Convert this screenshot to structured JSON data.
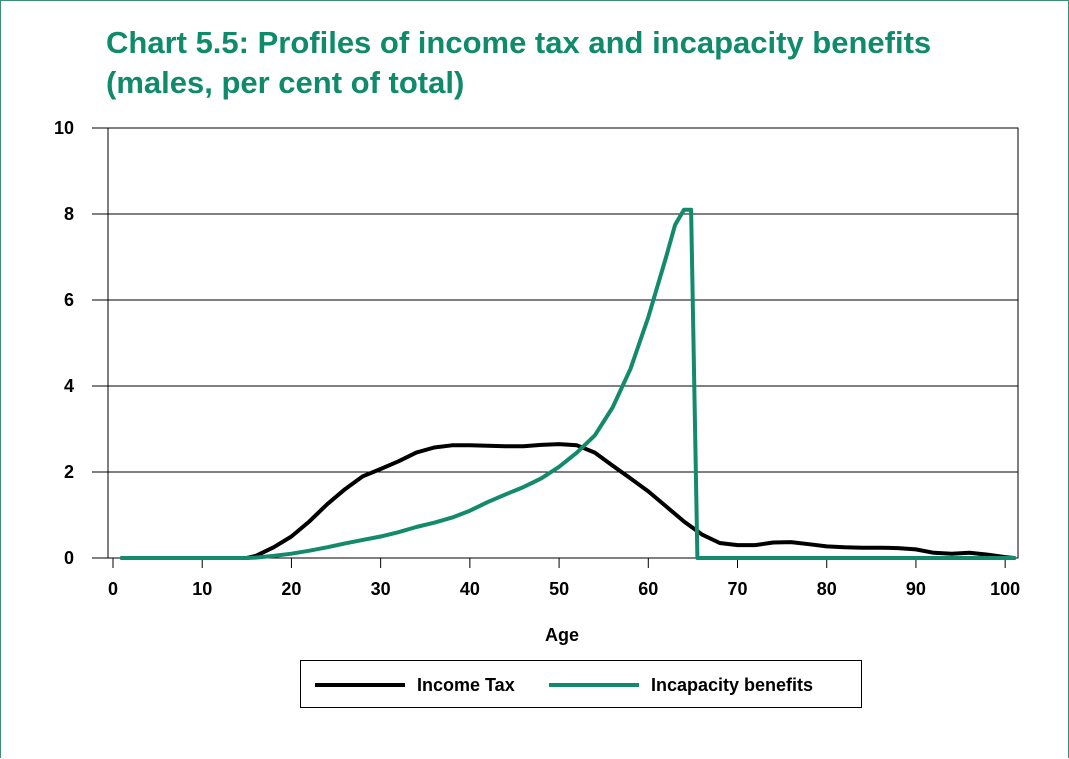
{
  "chart_data": {
    "type": "line",
    "title": "Chart 5.5: Profiles of income tax and incapacity benefits",
    "subtitle": "(males, per cent of total)",
    "xlabel": "Age",
    "ylabel": "",
    "xlim": [
      0,
      102
    ],
    "ylim": [
      0,
      10
    ],
    "x_ticks": [
      0,
      10,
      20,
      30,
      40,
      50,
      60,
      70,
      80,
      90,
      100
    ],
    "y_ticks": [
      0,
      2,
      4,
      6,
      8,
      10
    ],
    "x_tick_labels": [
      "0",
      "10",
      "20",
      "30",
      "40",
      "50",
      "60",
      "70",
      "80",
      "90",
      "100"
    ],
    "y_tick_labels": [
      "0",
      "2",
      "4",
      "6",
      "8",
      "10"
    ],
    "grid": "horizontal",
    "legend_position": "bottom",
    "series": [
      {
        "name": "Income Tax",
        "color": "#000000",
        "points": [
          [
            1,
            0
          ],
          [
            5,
            0
          ],
          [
            10,
            0
          ],
          [
            15,
            0
          ],
          [
            16,
            0.05
          ],
          [
            18,
            0.25
          ],
          [
            20,
            0.5
          ],
          [
            22,
            0.85
          ],
          [
            24,
            1.25
          ],
          [
            26,
            1.6
          ],
          [
            28,
            1.9
          ],
          [
            30,
            2.07
          ],
          [
            32,
            2.25
          ],
          [
            34,
            2.45
          ],
          [
            36,
            2.57
          ],
          [
            38,
            2.62
          ],
          [
            40,
            2.62
          ],
          [
            42,
            2.61
          ],
          [
            44,
            2.6
          ],
          [
            46,
            2.6
          ],
          [
            48,
            2.63
          ],
          [
            50,
            2.65
          ],
          [
            52,
            2.62
          ],
          [
            54,
            2.45
          ],
          [
            56,
            2.15
          ],
          [
            58,
            1.85
          ],
          [
            60,
            1.55
          ],
          [
            62,
            1.2
          ],
          [
            64,
            0.85
          ],
          [
            66,
            0.55
          ],
          [
            68,
            0.35
          ],
          [
            70,
            0.3
          ],
          [
            72,
            0.3
          ],
          [
            74,
            0.36
          ],
          [
            76,
            0.37
          ],
          [
            78,
            0.32
          ],
          [
            80,
            0.27
          ],
          [
            82,
            0.25
          ],
          [
            84,
            0.24
          ],
          [
            86,
            0.24
          ],
          [
            88,
            0.23
          ],
          [
            90,
            0.2
          ],
          [
            92,
            0.12
          ],
          [
            94,
            0.1
          ],
          [
            96,
            0.12
          ],
          [
            98,
            0.08
          ],
          [
            100,
            0.02
          ],
          [
            101,
            0
          ]
        ]
      },
      {
        "name": "Incapacity benefits",
        "color": "#138a6b",
        "points": [
          [
            1,
            0
          ],
          [
            5,
            0
          ],
          [
            10,
            0
          ],
          [
            15,
            0
          ],
          [
            16,
            0.01
          ],
          [
            18,
            0.05
          ],
          [
            20,
            0.1
          ],
          [
            22,
            0.17
          ],
          [
            24,
            0.25
          ],
          [
            26,
            0.34
          ],
          [
            28,
            0.42
          ],
          [
            30,
            0.5
          ],
          [
            32,
            0.6
          ],
          [
            34,
            0.72
          ],
          [
            36,
            0.82
          ],
          [
            38,
            0.94
          ],
          [
            40,
            1.1
          ],
          [
            42,
            1.3
          ],
          [
            44,
            1.48
          ],
          [
            46,
            1.65
          ],
          [
            48,
            1.85
          ],
          [
            50,
            2.12
          ],
          [
            52,
            2.45
          ],
          [
            54,
            2.85
          ],
          [
            56,
            3.5
          ],
          [
            58,
            4.4
          ],
          [
            60,
            5.6
          ],
          [
            62,
            7.0
          ],
          [
            63,
            7.75
          ],
          [
            64,
            8.1
          ],
          [
            64.8,
            8.1
          ],
          [
            65.5,
            0
          ],
          [
            70,
            0
          ],
          [
            80,
            0
          ],
          [
            90,
            0
          ],
          [
            100,
            0
          ],
          [
            101,
            0
          ]
        ]
      }
    ]
  }
}
